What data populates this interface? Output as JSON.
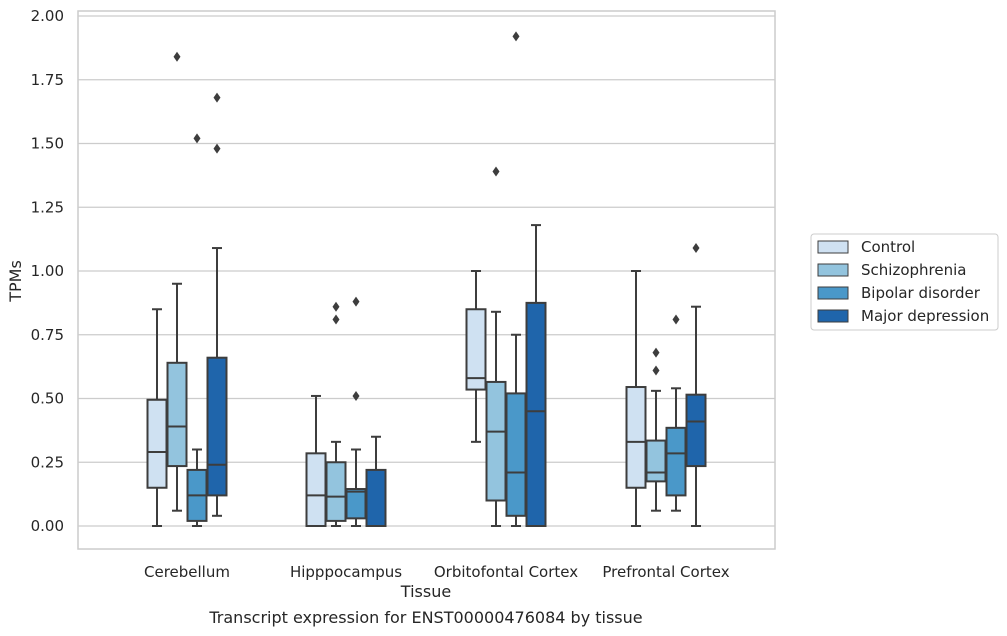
{
  "chart_data": {
    "type": "box",
    "title": "Transcript expression for ENST00000476084 by tissue",
    "xlabel": "Tissue",
    "ylabel": "TPMs",
    "ylim": [
      -0.09,
      2.02
    ],
    "yticks": [
      "0.00",
      "0.25",
      "0.50",
      "0.75",
      "1.00",
      "1.25",
      "1.50",
      "1.75",
      "2.00"
    ],
    "grid": "horizontal",
    "legend_position": "right",
    "categories": [
      "Cerebellum",
      "Hipppocampus",
      "Orbitofontal Cortex",
      "Prefrontal Cortex"
    ],
    "series": [
      {
        "name": "Control",
        "color": "#cfe1f2",
        "boxes": [
          {
            "whislo": 0.0,
            "q1": 0.15,
            "med": 0.29,
            "q3": 0.495,
            "whishi": 0.85,
            "fliers": []
          },
          {
            "whislo": 0.0,
            "q1": 0.0,
            "med": 0.12,
            "q3": 0.285,
            "whishi": 0.51,
            "fliers": []
          },
          {
            "whislo": 0.33,
            "q1": 0.535,
            "med": 0.58,
            "q3": 0.85,
            "whishi": 1.0,
            "fliers": []
          },
          {
            "whislo": 0.0,
            "q1": 0.15,
            "med": 0.33,
            "q3": 0.545,
            "whishi": 1.0,
            "fliers": []
          }
        ]
      },
      {
        "name": "Schizophrenia",
        "color": "#93c4de",
        "boxes": [
          {
            "whislo": 0.06,
            "q1": 0.235,
            "med": 0.39,
            "q3": 0.64,
            "whishi": 0.95,
            "fliers": [
              1.84
            ]
          },
          {
            "whislo": 0.0,
            "q1": 0.02,
            "med": 0.115,
            "q3": 0.25,
            "whishi": 0.33,
            "fliers": [
              0.86,
              0.81
            ]
          },
          {
            "whislo": 0.0,
            "q1": 0.1,
            "med": 0.37,
            "q3": 0.565,
            "whishi": 0.84,
            "fliers": [
              1.39
            ]
          },
          {
            "whislo": 0.06,
            "q1": 0.175,
            "med": 0.21,
            "q3": 0.335,
            "whishi": 0.53,
            "fliers": [
              0.68,
              0.61
            ]
          }
        ]
      },
      {
        "name": "Bipolar disorder",
        "color": "#4a98c9",
        "boxes": [
          {
            "whislo": 0.0,
            "q1": 0.02,
            "med": 0.12,
            "q3": 0.22,
            "whishi": 0.3,
            "fliers": [
              1.52
            ]
          },
          {
            "whislo": 0.0,
            "q1": 0.03,
            "med": 0.135,
            "q3": 0.145,
            "whishi": 0.3,
            "fliers": [
              0.88,
              0.51
            ]
          },
          {
            "whislo": 0.0,
            "q1": 0.04,
            "med": 0.21,
            "q3": 0.52,
            "whishi": 0.75,
            "fliers": [
              1.92
            ]
          },
          {
            "whislo": 0.06,
            "q1": 0.12,
            "med": 0.285,
            "q3": 0.385,
            "whishi": 0.54,
            "fliers": [
              0.81
            ]
          }
        ]
      },
      {
        "name": "Major depression",
        "color": "#1f65ab",
        "boxes": [
          {
            "whislo": 0.04,
            "q1": 0.12,
            "med": 0.24,
            "q3": 0.66,
            "whishi": 1.09,
            "fliers": [
              1.68,
              1.48
            ]
          },
          {
            "whislo": 0.0,
            "q1": 0.0,
            "med": 0.0,
            "q3": 0.22,
            "whishi": 0.35,
            "fliers": []
          },
          {
            "whislo": 0.0,
            "q1": 0.0,
            "med": 0.45,
            "q3": 0.875,
            "whishi": 1.18,
            "fliers": []
          },
          {
            "whislo": 0.0,
            "q1": 0.235,
            "med": 0.41,
            "q3": 0.515,
            "whishi": 0.86,
            "fliers": [
              1.09
            ]
          }
        ]
      }
    ]
  }
}
